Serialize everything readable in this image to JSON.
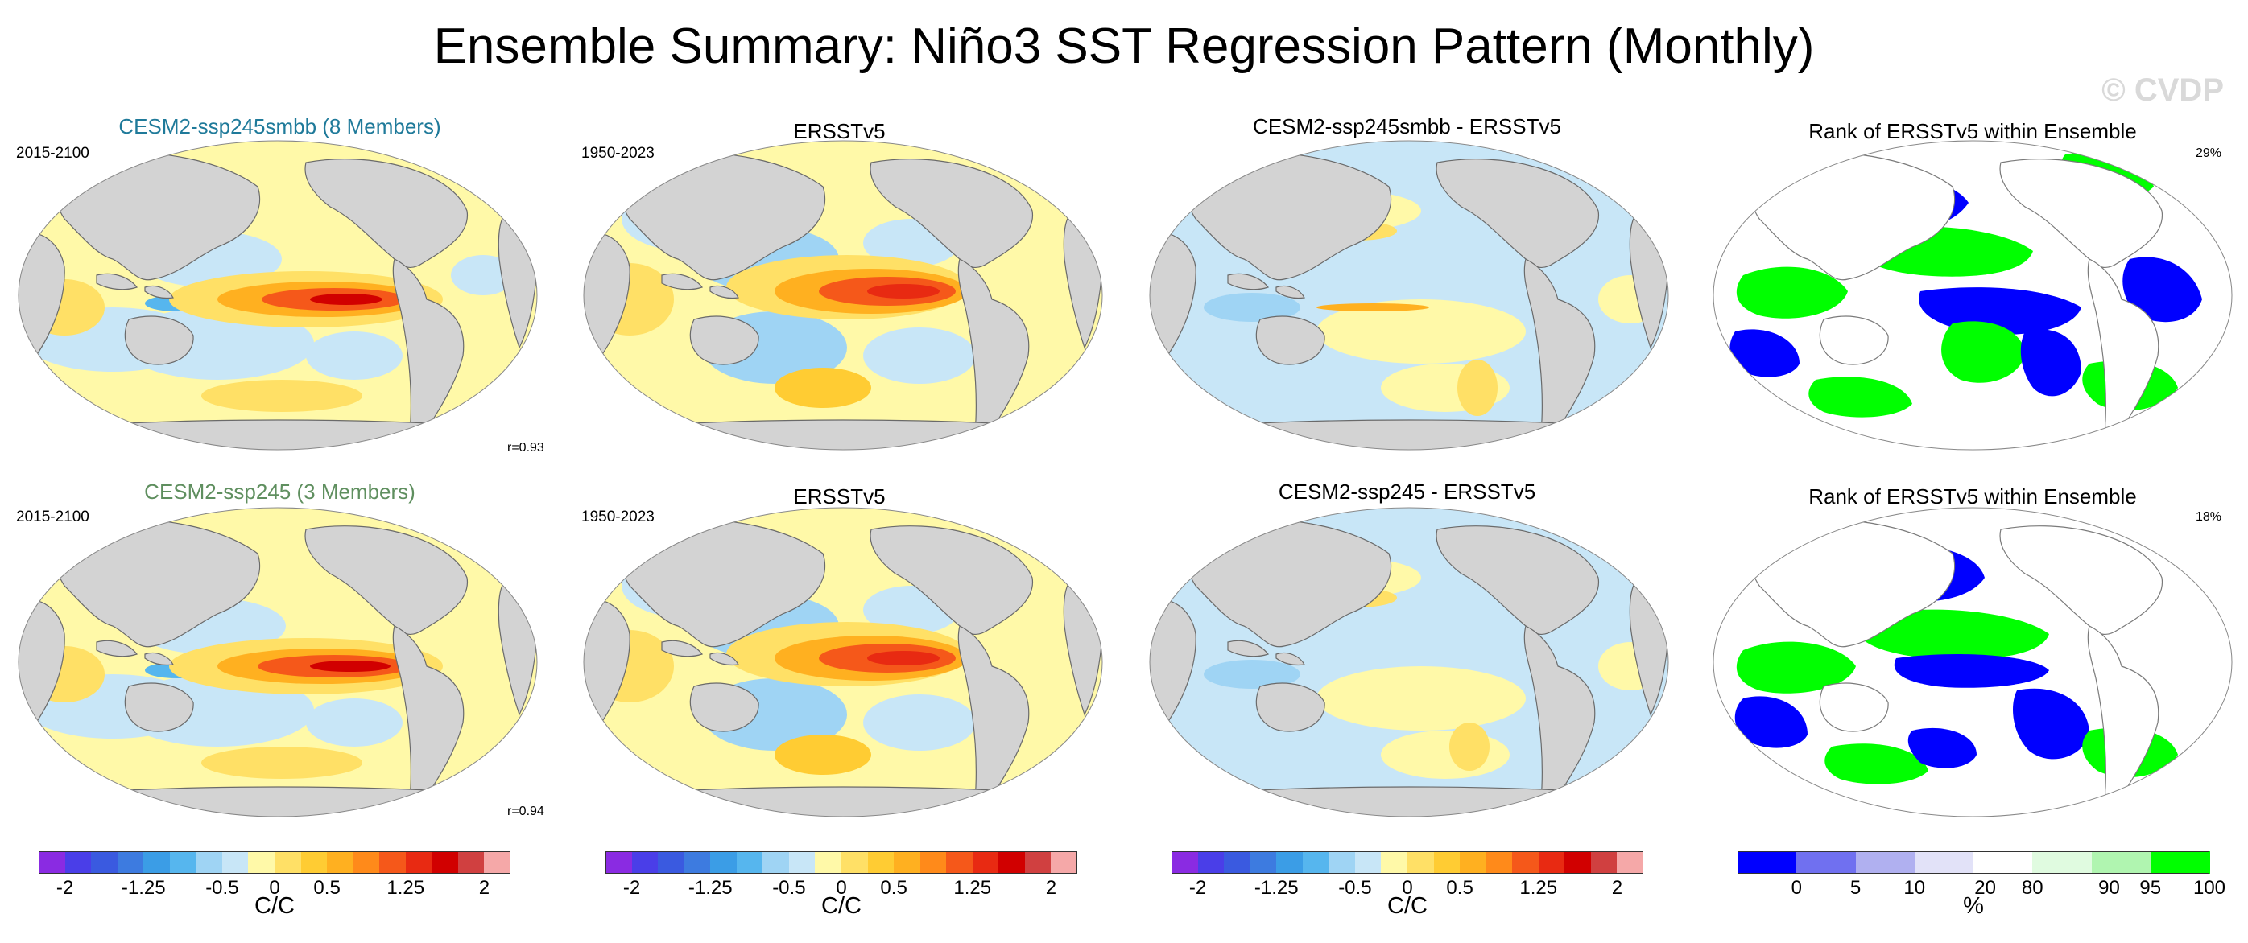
{
  "title": "Ensemble Summary: Niño3 SST Regression Pattern (Monthly)",
  "watermark": "© CVDP",
  "colors": {
    "title_row1": "#1f7a9a",
    "title_row2": "#5f8f5f",
    "land": "#d3d3d3",
    "ocean_base": "#fff9a8"
  },
  "rows": [
    {
      "ensemble": {
        "title": "CESM2-ssp245smbb (8 Members)",
        "period": "2015-2100",
        "correlation": "r=0.93"
      },
      "obs": {
        "title": "ERSSTv5",
        "period": "1950-2023"
      },
      "diff": {
        "title": "CESM2-ssp245smbb - ERSSTv5"
      },
      "rank": {
        "title": "Rank of ERSSTv5 within Ensemble",
        "percent": "29%"
      }
    },
    {
      "ensemble": {
        "title": "CESM2-ssp245 (3 Members)",
        "period": "2015-2100",
        "correlation": "r=0.94"
      },
      "obs": {
        "title": "ERSSTv5",
        "period": "1950-2023"
      },
      "diff": {
        "title": "CESM2-ssp245 - ERSSTv5"
      },
      "rank": {
        "title": "Rank of ERSSTv5 within Ensemble",
        "percent": "18%"
      }
    }
  ],
  "chart_data": [
    {
      "type": "heatmap",
      "name": "regression-colorbar",
      "units": "C/C",
      "range": [
        -2,
        2
      ],
      "tick_labels": [
        "-2",
        "-1.25",
        "-0.5",
        "0",
        "0.5",
        "1.25",
        "2"
      ],
      "colors": [
        "#8a2be2",
        "#4a3ee8",
        "#3a5ae0",
        "#3d7be0",
        "#3b9de6",
        "#56b6ee",
        "#9fd4f4",
        "#c8e6f7",
        "#fff9a8",
        "#ffe066",
        "#ffcc33",
        "#ffb020",
        "#ff8a1a",
        "#f5581a",
        "#e82a12",
        "#d10000",
        "#d04040",
        "#f5a8a8"
      ]
    },
    {
      "type": "heatmap",
      "name": "rank-colorbar",
      "units": "%",
      "range": [
        0,
        100
      ],
      "tick_labels": [
        "0",
        "5",
        "10",
        "20",
        "80",
        "90",
        "95",
        "100"
      ],
      "colors": [
        "#0000ff",
        "#7070f0",
        "#b0b0f0",
        "#e2e2f8",
        "#ffffff",
        "#e0fbe0",
        "#b0f5b0",
        "#00ff00"
      ]
    }
  ]
}
